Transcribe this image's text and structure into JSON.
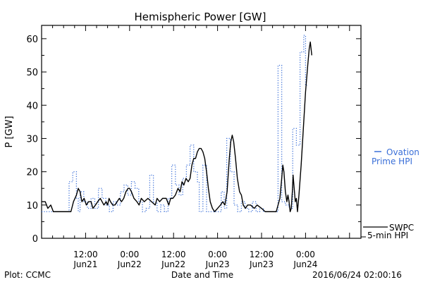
{
  "footer": {
    "plot_credit": "Plot: CCMC",
    "timestamp": "2016/06/24 02:00:16"
  },
  "chart_data": {
    "type": "line",
    "title": "Hemispheric Power [GW]",
    "xlabel": "Date and Time",
    "ylabel": "P [GW]",
    "ylim": [
      0,
      64
    ],
    "yticks": [
      0,
      10,
      20,
      30,
      40,
      50,
      60
    ],
    "xlim_hours": [
      0,
      86
    ],
    "x_ticks": [
      {
        "line1": "12:00",
        "line2": "Jun21",
        "h": 12
      },
      {
        "line1": "0:00",
        "line2": "Jun22",
        "h": 24
      },
      {
        "line1": "12:00",
        "line2": "Jun22",
        "h": 36
      },
      {
        "line1": "0:00",
        "line2": "Jun23",
        "h": 48
      },
      {
        "line1": "12:00",
        "line2": "Jun23",
        "h": 60
      },
      {
        "line1": "0:00",
        "line2": "Jun24",
        "h": 72
      }
    ],
    "grid": false,
    "legend_position": "right",
    "colors": {
      "swpc": "#000000",
      "ovation": "#3a6fd8"
    },
    "series": [
      {
        "key": "ovation",
        "name": "Ovation Prime HPI",
        "legend_lines": [
          "Ovation",
          "Prime HPI"
        ],
        "style": "dotted-step",
        "points": [
          [
            0,
            8
          ],
          [
            3,
            8
          ],
          [
            7.5,
            17
          ],
          [
            8.5,
            20
          ],
          [
            9.5,
            12
          ],
          [
            10,
            8
          ],
          [
            10.5,
            14
          ],
          [
            11.5,
            11
          ],
          [
            12.5,
            9
          ],
          [
            13.5,
            12
          ],
          [
            14.5,
            9
          ],
          [
            15.5,
            15
          ],
          [
            16.5,
            12
          ],
          [
            17.5,
            10
          ],
          [
            18.5,
            8
          ],
          [
            19.5,
            11
          ],
          [
            20.5,
            10
          ],
          [
            21.5,
            14
          ],
          [
            22.5,
            16
          ],
          [
            23.5,
            13
          ],
          [
            24.5,
            17
          ],
          [
            25.5,
            15
          ],
          [
            26.5,
            11
          ],
          [
            27.5,
            8
          ],
          [
            28.5,
            9
          ],
          [
            29.5,
            19
          ],
          [
            30.5,
            11
          ],
          [
            31.5,
            8
          ],
          [
            32.5,
            10
          ],
          [
            33.5,
            8
          ],
          [
            34.5,
            12
          ],
          [
            35.5,
            22
          ],
          [
            36.5,
            16
          ],
          [
            37.5,
            13
          ],
          [
            38.5,
            18
          ],
          [
            39.5,
            22
          ],
          [
            40.5,
            28
          ],
          [
            41.5,
            20
          ],
          [
            42.5,
            17
          ],
          [
            43,
            8
          ],
          [
            44,
            22
          ],
          [
            45,
            8
          ],
          [
            48,
            8
          ],
          [
            49,
            14
          ],
          [
            49.8,
            9
          ],
          [
            50.5,
            30
          ],
          [
            51.5,
            20
          ],
          [
            52.5,
            10
          ],
          [
            53.5,
            8
          ],
          [
            54.5,
            11
          ],
          [
            55.5,
            9
          ],
          [
            56.5,
            8
          ],
          [
            57.5,
            11
          ],
          [
            58.5,
            8
          ],
          [
            59.5,
            9
          ],
          [
            60.5,
            8
          ],
          [
            62.5,
            8
          ],
          [
            64.5,
            52
          ],
          [
            65.5,
            11
          ],
          [
            66.5,
            10
          ],
          [
            67.5,
            9
          ],
          [
            68.5,
            33
          ],
          [
            69.5,
            28
          ],
          [
            70.5,
            56
          ],
          [
            71.5,
            61
          ],
          [
            72,
            46
          ],
          [
            72.4,
            46
          ]
        ]
      },
      {
        "key": "swpc",
        "name": "SWPC 5-min HPI",
        "legend_lines": [
          "SWPC",
          "5-min HPI"
        ],
        "style": "solid",
        "points": [
          [
            0,
            11
          ],
          [
            1,
            11
          ],
          [
            1.7,
            9
          ],
          [
            2.5,
            10
          ],
          [
            3.2,
            8
          ],
          [
            4.5,
            8
          ],
          [
            6,
            8
          ],
          [
            7,
            8
          ],
          [
            8,
            8
          ],
          [
            8.7,
            11
          ],
          [
            9.5,
            13
          ],
          [
            10,
            15
          ],
          [
            10.5,
            14
          ],
          [
            11,
            11
          ],
          [
            11.6,
            12
          ],
          [
            12.2,
            10
          ],
          [
            12.8,
            11
          ],
          [
            13.5,
            11
          ],
          [
            14,
            9
          ],
          [
            14.7,
            10
          ],
          [
            15.3,
            11
          ],
          [
            16,
            12
          ],
          [
            16.5,
            11
          ],
          [
            17,
            10
          ],
          [
            17.6,
            11
          ],
          [
            18,
            10
          ],
          [
            18.4,
            12
          ],
          [
            18.8,
            11
          ],
          [
            19.4,
            10
          ],
          [
            20,
            10
          ],
          [
            20.6,
            11
          ],
          [
            21.2,
            12
          ],
          [
            21.8,
            11
          ],
          [
            22.4,
            12
          ],
          [
            23,
            14
          ],
          [
            23.6,
            15
          ],
          [
            24,
            15
          ],
          [
            24.5,
            14
          ],
          [
            25.2,
            12
          ],
          [
            26,
            11
          ],
          [
            26.6,
            10
          ],
          [
            27.2,
            12
          ],
          [
            28,
            11
          ],
          [
            29,
            12
          ],
          [
            30,
            11
          ],
          [
            31,
            10
          ],
          [
            31.5,
            12
          ],
          [
            32.2,
            11
          ],
          [
            33,
            12
          ],
          [
            34,
            12
          ],
          [
            34.7,
            10
          ],
          [
            35.2,
            12
          ],
          [
            35.8,
            12
          ],
          [
            36.5,
            13
          ],
          [
            37.2,
            15
          ],
          [
            37.8,
            14
          ],
          [
            38.3,
            17
          ],
          [
            38.8,
            16
          ],
          [
            39.4,
            18
          ],
          [
            40,
            17
          ],
          [
            40.5,
            18
          ],
          [
            41,
            22
          ],
          [
            41.5,
            24
          ],
          [
            42,
            24
          ],
          [
            42.5,
            26
          ],
          [
            43,
            27
          ],
          [
            43.5,
            27
          ],
          [
            44,
            26
          ],
          [
            44.5,
            24
          ],
          [
            45,
            20
          ],
          [
            45.5,
            15
          ],
          [
            46,
            11
          ],
          [
            46.6,
            9
          ],
          [
            47.2,
            8
          ],
          [
            48,
            9
          ],
          [
            48.8,
            10
          ],
          [
            49.4,
            11
          ],
          [
            50,
            10
          ],
          [
            50.6,
            14
          ],
          [
            51.2,
            24
          ],
          [
            51.6,
            29
          ],
          [
            52,
            31
          ],
          [
            52.4,
            29
          ],
          [
            52.9,
            24
          ],
          [
            53.4,
            18
          ],
          [
            54,
            14
          ],
          [
            54.5,
            13
          ],
          [
            55,
            10
          ],
          [
            55.6,
            9
          ],
          [
            56.2,
            10
          ],
          [
            57,
            10
          ],
          [
            58,
            9
          ],
          [
            58.8,
            10
          ],
          [
            60,
            9
          ],
          [
            61,
            8
          ],
          [
            62,
            8
          ],
          [
            63,
            8
          ],
          [
            64,
            8
          ],
          [
            65,
            12
          ],
          [
            65.5,
            18
          ],
          [
            65.8,
            22
          ],
          [
            66.1,
            20
          ],
          [
            66.5,
            14
          ],
          [
            66.9,
            11
          ],
          [
            67.2,
            13
          ],
          [
            67.5,
            11
          ],
          [
            67.8,
            8
          ],
          [
            68.1,
            9
          ],
          [
            68.4,
            14
          ],
          [
            68.6,
            19
          ],
          [
            68.9,
            15
          ],
          [
            69.2,
            11
          ],
          [
            69.5,
            12
          ],
          [
            69.8,
            8
          ],
          [
            70.2,
            13
          ],
          [
            70.8,
            22
          ],
          [
            71.4,
            33
          ],
          [
            72,
            44
          ],
          [
            72.6,
            52
          ],
          [
            73,
            57
          ],
          [
            73.3,
            59
          ],
          [
            73.7,
            55
          ]
        ]
      }
    ]
  }
}
